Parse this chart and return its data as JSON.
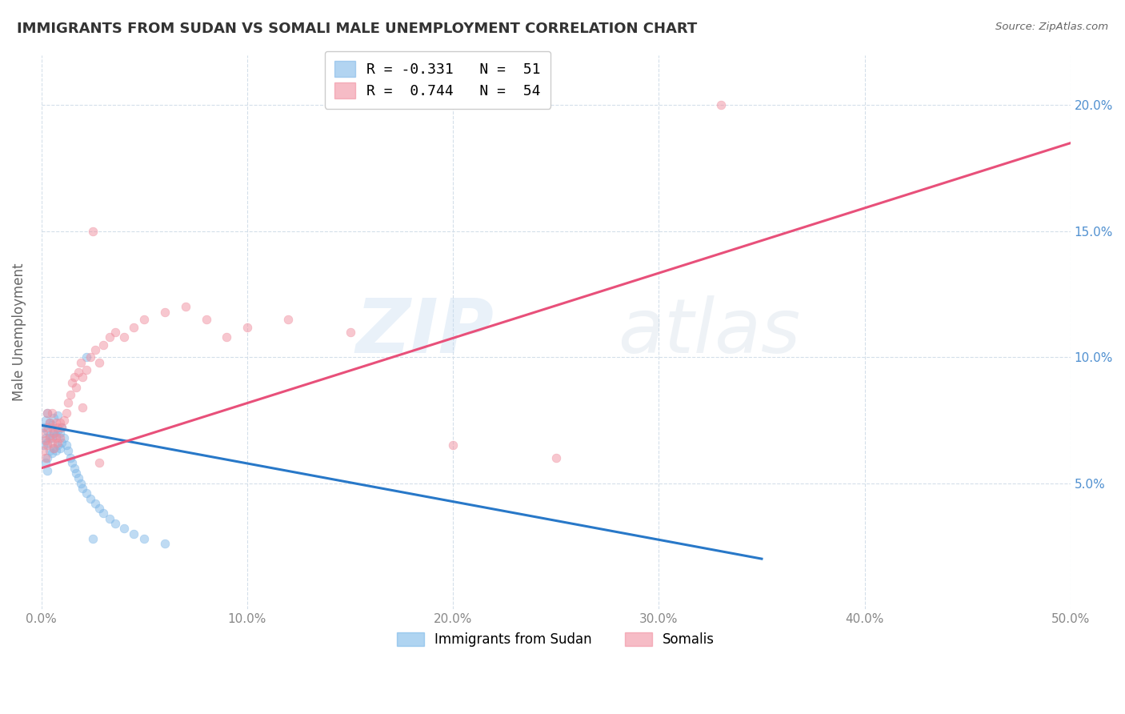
{
  "title": "IMMIGRANTS FROM SUDAN VS SOMALI MALE UNEMPLOYMENT CORRELATION CHART",
  "source": "Source: ZipAtlas.com",
  "ylabel_label": "Male Unemployment",
  "watermark_zip": "ZIP",
  "watermark_atlas": "atlas",
  "legend_entries": [
    {
      "label": "R = -0.331   N =  51",
      "color": "#a8c8e8"
    },
    {
      "label": "R =  0.744   N =  54",
      "color": "#f4a8b8"
    }
  ],
  "legend_series": [
    {
      "name": "Immigrants from Sudan",
      "color": "#7ab8e8"
    },
    {
      "name": "Somalis",
      "color": "#f090a0"
    }
  ],
  "xlim": [
    0.0,
    0.5
  ],
  "ylim": [
    0.0,
    0.22
  ],
  "xtick_labels": [
    "0.0%",
    "10.0%",
    "20.0%",
    "30.0%",
    "40.0%",
    "50.0%"
  ],
  "xtick_values": [
    0.0,
    0.1,
    0.2,
    0.3,
    0.4,
    0.5
  ],
  "ytick_labels": [
    "5.0%",
    "10.0%",
    "15.0%",
    "20.0%"
  ],
  "ytick_values": [
    0.05,
    0.1,
    0.15,
    0.2
  ],
  "grid_color": "#d0dce8",
  "background_color": "#ffffff",
  "sudan_scatter_x": [
    0.001,
    0.001,
    0.002,
    0.002,
    0.002,
    0.003,
    0.003,
    0.003,
    0.003,
    0.004,
    0.004,
    0.004,
    0.005,
    0.005,
    0.005,
    0.006,
    0.006,
    0.006,
    0.007,
    0.007,
    0.008,
    0.008,
    0.008,
    0.009,
    0.009,
    0.01,
    0.01,
    0.011,
    0.012,
    0.013,
    0.014,
    0.015,
    0.016,
    0.017,
    0.018,
    0.019,
    0.02,
    0.022,
    0.024,
    0.026,
    0.028,
    0.03,
    0.033,
    0.036,
    0.04,
    0.045,
    0.05,
    0.06,
    0.022,
    0.025,
    0.003
  ],
  "sudan_scatter_y": [
    0.065,
    0.072,
    0.058,
    0.068,
    0.075,
    0.06,
    0.066,
    0.071,
    0.078,
    0.063,
    0.069,
    0.074,
    0.062,
    0.068,
    0.073,
    0.064,
    0.07,
    0.076,
    0.063,
    0.069,
    0.065,
    0.071,
    0.077,
    0.064,
    0.07,
    0.066,
    0.072,
    0.068,
    0.065,
    0.063,
    0.06,
    0.058,
    0.056,
    0.054,
    0.052,
    0.05,
    0.048,
    0.046,
    0.044,
    0.042,
    0.04,
    0.038,
    0.036,
    0.034,
    0.032,
    0.03,
    0.028,
    0.026,
    0.1,
    0.028,
    0.055
  ],
  "somali_scatter_x": [
    0.001,
    0.001,
    0.002,
    0.002,
    0.003,
    0.003,
    0.003,
    0.004,
    0.004,
    0.005,
    0.005,
    0.005,
    0.006,
    0.006,
    0.007,
    0.007,
    0.008,
    0.008,
    0.009,
    0.009,
    0.01,
    0.011,
    0.012,
    0.013,
    0.014,
    0.015,
    0.016,
    0.017,
    0.018,
    0.019,
    0.02,
    0.022,
    0.024,
    0.026,
    0.028,
    0.03,
    0.033,
    0.036,
    0.04,
    0.045,
    0.05,
    0.06,
    0.07,
    0.08,
    0.09,
    0.1,
    0.12,
    0.15,
    0.2,
    0.25,
    0.02,
    0.025,
    0.028,
    0.33
  ],
  "somali_scatter_y": [
    0.063,
    0.07,
    0.06,
    0.067,
    0.065,
    0.072,
    0.078,
    0.068,
    0.074,
    0.066,
    0.072,
    0.078,
    0.064,
    0.07,
    0.068,
    0.074,
    0.066,
    0.072,
    0.068,
    0.074,
    0.072,
    0.075,
    0.078,
    0.082,
    0.085,
    0.09,
    0.092,
    0.088,
    0.094,
    0.098,
    0.092,
    0.095,
    0.1,
    0.103,
    0.098,
    0.105,
    0.108,
    0.11,
    0.108,
    0.112,
    0.115,
    0.118,
    0.12,
    0.115,
    0.108,
    0.112,
    0.115,
    0.11,
    0.065,
    0.06,
    0.08,
    0.15,
    0.058,
    0.2
  ],
  "sudan_trendline_x": [
    0.0,
    0.35
  ],
  "sudan_trendline_y": [
    0.073,
    0.02
  ],
  "somali_trendline_x": [
    0.0,
    0.5
  ],
  "somali_trendline_y": [
    0.056,
    0.185
  ],
  "title_color": "#333333",
  "title_fontsize": 13,
  "axis_label_color": "#666666",
  "tick_color": "#888888",
  "sudan_color": "#80b8e8",
  "somali_color": "#f090a0",
  "sudan_trendline_color": "#2878c8",
  "somali_trendline_color": "#e8507a",
  "right_tick_color": "#5090d0"
}
